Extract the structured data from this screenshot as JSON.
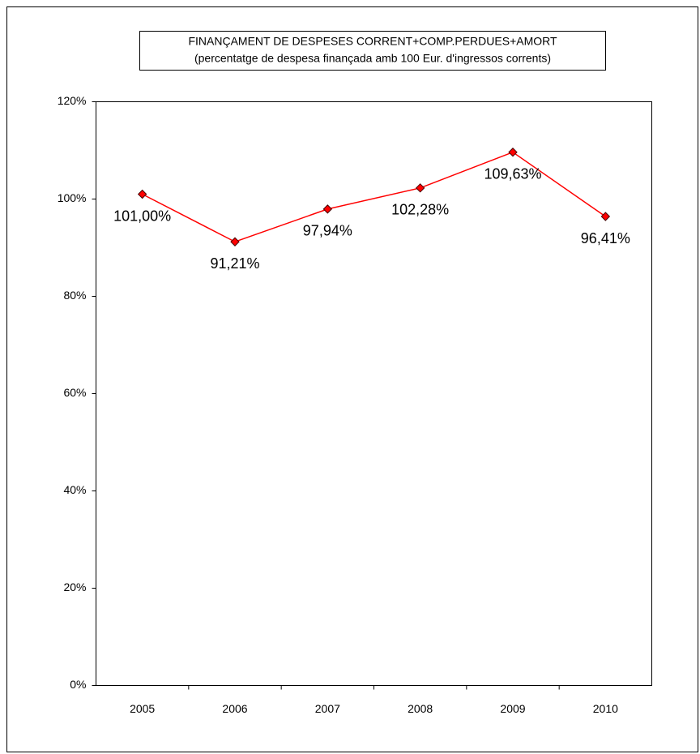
{
  "chart_data": {
    "type": "line",
    "title": "FINANÇAMENT DE DESPESES CORRENT+COMP.PERDUES+AMORT",
    "subtitle": "(percentatge de despesa  finançada amb 100 Eur. d'ingressos corrents)",
    "categories": [
      "2005",
      "2006",
      "2007",
      "2008",
      "2009",
      "2010"
    ],
    "series": [
      {
        "color": "#ff0000",
        "values": [
          101.0,
          91.21,
          97.94,
          102.28,
          109.63,
          96.41
        ],
        "value_labels": [
          "101,00%",
          "91,21%",
          "97,94%",
          "102,28%",
          "109,63%",
          "96,41%"
        ]
      }
    ],
    "ylim": [
      0,
      120
    ],
    "yticks": [
      {
        "value": 0,
        "label": "0%"
      },
      {
        "value": 20,
        "label": "20%"
      },
      {
        "value": 40,
        "label": "40%"
      },
      {
        "value": 60,
        "label": "60%"
      },
      {
        "value": 80,
        "label": "80%"
      },
      {
        "value": 100,
        "label": "100%"
      },
      {
        "value": 120,
        "label": "120%"
      }
    ],
    "grid": false
  }
}
